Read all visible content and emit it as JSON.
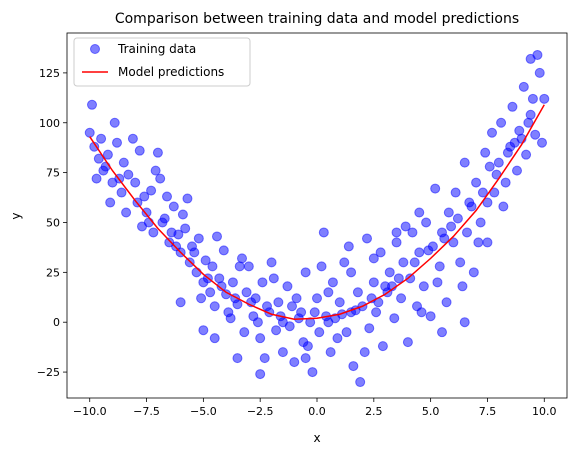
{
  "chart_data": {
    "type": "scatter",
    "title": "Comparison between training data and model predictions",
    "xlabel": "x",
    "ylabel": "y",
    "xlim": [
      -11,
      11
    ],
    "ylim": [
      -38,
      145
    ],
    "xticks": [
      -10.0,
      -7.5,
      -5.0,
      -2.5,
      0.0,
      2.5,
      5.0,
      7.5,
      10.0
    ],
    "xtick_labels": [
      "−10.0",
      "−7.5",
      "−5.0",
      "−2.5",
      "0.0",
      "2.5",
      "5.0",
      "7.5",
      "10.0"
    ],
    "yticks": [
      -25,
      0,
      25,
      50,
      75,
      100,
      125
    ],
    "ytick_labels": [
      "−25",
      "0",
      "25",
      "50",
      "75",
      "100",
      "125"
    ],
    "grid": false,
    "legend_position": "top-left",
    "series": [
      {
        "name": "Training data",
        "kind": "scatter",
        "color": "#0000ff",
        "alpha": 0.5,
        "points": [
          [
            -9.9,
            109
          ],
          [
            -10.0,
            95
          ],
          [
            -9.8,
            88
          ],
          [
            -9.6,
            82
          ],
          [
            -9.5,
            92
          ],
          [
            -9.4,
            76
          ],
          [
            -9.2,
            84
          ],
          [
            -9.0,
            70
          ],
          [
            -8.9,
            100
          ],
          [
            -8.8,
            90
          ],
          [
            -8.6,
            65
          ],
          [
            -8.5,
            80
          ],
          [
            -8.3,
            74
          ],
          [
            -8.1,
            92
          ],
          [
            -8.0,
            70
          ],
          [
            -7.8,
            86
          ],
          [
            -7.6,
            63
          ],
          [
            -7.5,
            55
          ],
          [
            -7.3,
            66
          ],
          [
            -7.2,
            45
          ],
          [
            -7.1,
            76
          ],
          [
            -6.9,
            72
          ],
          [
            -6.8,
            50
          ],
          [
            -6.6,
            63
          ],
          [
            -6.5,
            40
          ],
          [
            -6.3,
            58
          ],
          [
            -6.1,
            44
          ],
          [
            -6.0,
            35
          ],
          [
            -5.9,
            54
          ],
          [
            -5.8,
            47
          ],
          [
            -5.6,
            30
          ],
          [
            -5.5,
            38
          ],
          [
            -5.3,
            25
          ],
          [
            -5.2,
            42
          ],
          [
            -5.0,
            20
          ],
          [
            -4.9,
            31
          ],
          [
            -4.7,
            15
          ],
          [
            -4.6,
            28
          ],
          [
            -4.5,
            8
          ],
          [
            -4.3,
            22
          ],
          [
            -4.1,
            36
          ],
          [
            -4.0,
            14
          ],
          [
            -3.8,
            2
          ],
          [
            -3.7,
            20
          ],
          [
            -3.5,
            9
          ],
          [
            -3.4,
            28
          ],
          [
            -3.2,
            -5
          ],
          [
            -3.1,
            15
          ],
          [
            -3.0,
            28
          ],
          [
            -2.8,
            3
          ],
          [
            -2.7,
            12
          ],
          [
            -2.5,
            -8
          ],
          [
            -2.4,
            20
          ],
          [
            -2.3,
            -18
          ],
          [
            -2.1,
            5
          ],
          [
            -2.0,
            30
          ],
          [
            -1.8,
            -4
          ],
          [
            -1.7,
            10
          ],
          [
            -1.5,
            -15
          ],
          [
            -1.3,
            18
          ],
          [
            -1.2,
            -2
          ],
          [
            -1.0,
            -20
          ],
          [
            -0.9,
            12
          ],
          [
            -0.7,
            5
          ],
          [
            -0.6,
            -10
          ],
          [
            -0.5,
            25
          ],
          [
            -0.3,
            0
          ],
          [
            -0.2,
            -25
          ],
          [
            0.0,
            12
          ],
          [
            0.1,
            -5
          ],
          [
            0.3,
            45
          ],
          [
            0.4,
            3
          ],
          [
            0.6,
            -15
          ],
          [
            0.7,
            20
          ],
          [
            0.9,
            -8
          ],
          [
            1.0,
            10
          ],
          [
            1.2,
            30
          ],
          [
            1.3,
            -5
          ],
          [
            1.5,
            5
          ],
          [
            1.6,
            -22
          ],
          [
            1.8,
            15
          ],
          [
            1.9,
            -30
          ],
          [
            2.0,
            8
          ],
          [
            2.2,
            42
          ],
          [
            2.3,
            -3
          ],
          [
            2.5,
            20
          ],
          [
            2.6,
            5
          ],
          [
            2.8,
            35
          ],
          [
            2.9,
            -12
          ],
          [
            3.1,
            15
          ],
          [
            3.2,
            25
          ],
          [
            3.4,
            2
          ],
          [
            3.5,
            40
          ],
          [
            3.7,
            12
          ],
          [
            3.8,
            30
          ],
          [
            4.0,
            -10
          ],
          [
            4.1,
            22
          ],
          [
            4.2,
            45
          ],
          [
            4.4,
            8
          ],
          [
            4.5,
            35
          ],
          [
            4.7,
            18
          ],
          [
            4.8,
            50
          ],
          [
            5.0,
            3
          ],
          [
            5.1,
            38
          ],
          [
            5.2,
            67
          ],
          [
            5.4,
            28
          ],
          [
            5.5,
            45
          ],
          [
            5.7,
            10
          ],
          [
            5.8,
            55
          ],
          [
            6.0,
            40
          ],
          [
            6.1,
            65
          ],
          [
            6.3,
            30
          ],
          [
            6.5,
            80
          ],
          [
            6.6,
            45
          ],
          [
            6.8,
            58
          ],
          [
            6.9,
            25
          ],
          [
            7.0,
            70
          ],
          [
            7.2,
            50
          ],
          [
            7.4,
            85
          ],
          [
            7.5,
            60
          ],
          [
            7.7,
            95
          ],
          [
            7.8,
            65
          ],
          [
            8.0,
            80
          ],
          [
            8.1,
            100
          ],
          [
            8.3,
            70
          ],
          [
            8.5,
            88
          ],
          [
            8.6,
            108
          ],
          [
            8.8,
            76
          ],
          [
            8.9,
            96
          ],
          [
            9.1,
            118
          ],
          [
            9.2,
            84
          ],
          [
            9.4,
            104
          ],
          [
            9.4,
            132
          ],
          [
            9.6,
            94
          ],
          [
            9.7,
            134
          ],
          [
            9.9,
            90
          ],
          [
            10.0,
            112
          ],
          [
            9.8,
            125
          ],
          [
            -9.7,
            72
          ],
          [
            -9.1,
            60
          ],
          [
            -8.4,
            55
          ],
          [
            -7.7,
            48
          ],
          [
            -7.0,
            85
          ],
          [
            -6.4,
            45
          ],
          [
            -5.7,
            62
          ],
          [
            -5.1,
            12
          ],
          [
            -4.4,
            43
          ],
          [
            -3.9,
            5
          ],
          [
            -3.3,
            32
          ],
          [
            -2.6,
            0
          ],
          [
            -1.9,
            22
          ],
          [
            -1.1,
            8
          ],
          [
            -0.4,
            -12
          ],
          [
            0.2,
            28
          ],
          [
            0.8,
            2
          ],
          [
            1.4,
            38
          ],
          [
            2.1,
            -15
          ],
          [
            2.7,
            10
          ],
          [
            3.3,
            18
          ],
          [
            3.9,
            48
          ],
          [
            4.6,
            5
          ],
          [
            5.3,
            20
          ],
          [
            5.9,
            48
          ],
          [
            6.4,
            18
          ],
          [
            7.1,
            40
          ],
          [
            7.6,
            78
          ],
          [
            8.2,
            58
          ],
          [
            8.7,
            90
          ],
          [
            9.3,
            100
          ],
          [
            9.5,
            112
          ],
          [
            -9.3,
            78
          ],
          [
            -8.7,
            72
          ],
          [
            -7.9,
            60
          ],
          [
            -7.4,
            50
          ],
          [
            -6.7,
            52
          ],
          [
            -6.2,
            38
          ],
          [
            -5.4,
            35
          ],
          [
            -4.8,
            22
          ],
          [
            -4.2,
            18
          ],
          [
            -3.6,
            12
          ],
          [
            -2.9,
            10
          ],
          [
            -2.2,
            8
          ],
          [
            -1.6,
            3
          ],
          [
            -0.8,
            2
          ],
          [
            -0.1,
            5
          ],
          [
            0.5,
            0
          ],
          [
            1.1,
            4
          ],
          [
            1.7,
            6
          ],
          [
            2.4,
            12
          ],
          [
            3.0,
            18
          ],
          [
            3.6,
            22
          ],
          [
            4.3,
            30
          ],
          [
            4.9,
            36
          ],
          [
            5.6,
            42
          ],
          [
            6.2,
            52
          ],
          [
            6.7,
            60
          ],
          [
            7.3,
            65
          ],
          [
            7.9,
            74
          ],
          [
            8.4,
            85
          ],
          [
            9.0,
            92
          ],
          [
            -6.0,
            10
          ],
          [
            -5.0,
            -4
          ],
          [
            -4.5,
            -8
          ],
          [
            -3.5,
            -18
          ],
          [
            -2.5,
            -26
          ],
          [
            -1.5,
            0
          ],
          [
            -0.5,
            -18
          ],
          [
            0.5,
            15
          ],
          [
            1.5,
            25
          ],
          [
            2.5,
            32
          ],
          [
            3.5,
            45
          ],
          [
            4.5,
            55
          ],
          [
            5.5,
            -5
          ],
          [
            6.5,
            0
          ],
          [
            7.5,
            40
          ]
        ]
      },
      {
        "name": "Model predictions",
        "kind": "line",
        "color": "#ff0000",
        "x": [
          -10,
          -9,
          -8,
          -7,
          -6,
          -5,
          -4,
          -3,
          -2,
          -1,
          0,
          1,
          2,
          3,
          4,
          5,
          6,
          7,
          8,
          9,
          10
        ],
        "y": [
          93,
          76,
          61,
          47,
          35,
          24,
          15,
          9,
          4,
          1.5,
          2,
          4,
          8,
          14,
          22,
          32,
          43,
          56,
          72,
          89,
          109
        ]
      }
    ]
  }
}
